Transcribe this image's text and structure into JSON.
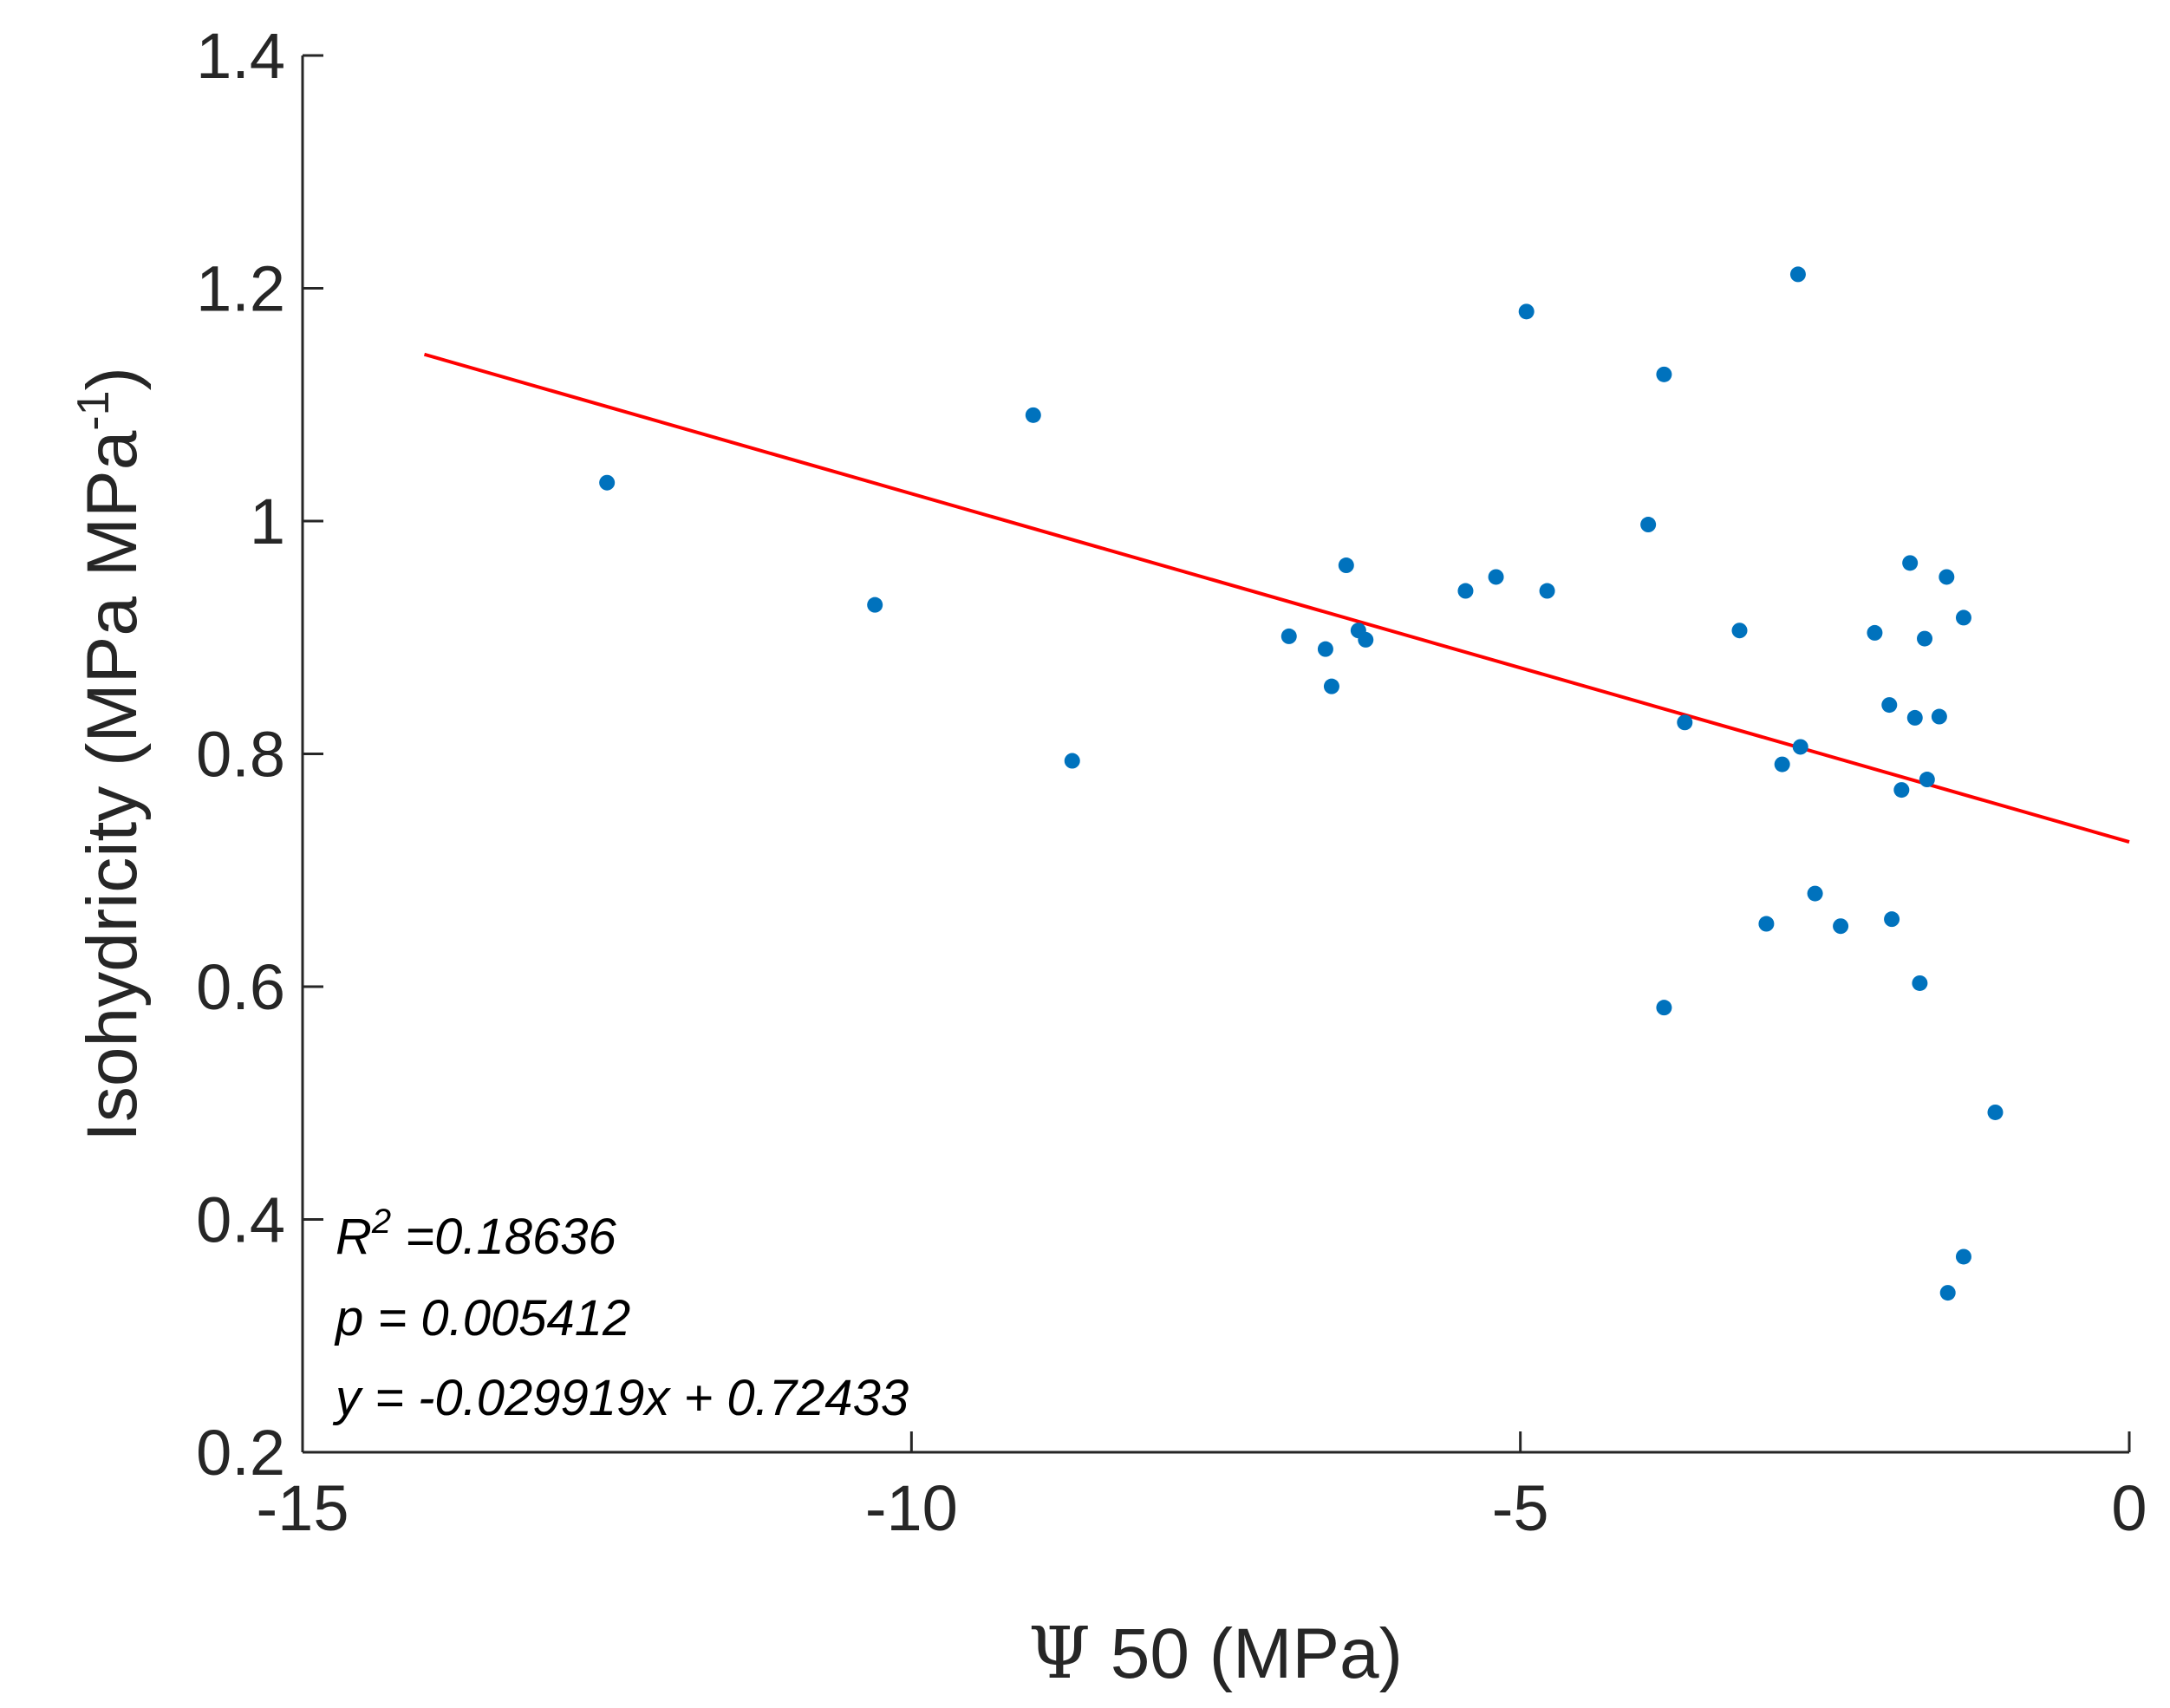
{
  "chart_data": {
    "type": "scatter",
    "xlabel_symbol": "Ψ",
    "xlabel": " 50 (MPa)",
    "ylabel": "Isohydricity (MPa MPa",
    "ylabel_sup": "-1",
    "ylabel_end": ")",
    "xlim": [
      -15,
      0
    ],
    "ylim": [
      0.2,
      1.4
    ],
    "xticks": [
      -15,
      -10,
      -5,
      0
    ],
    "xtick_labels": [
      "-15",
      "-10",
      "-5",
      "0"
    ],
    "yticks": [
      0.2,
      0.4,
      0.6,
      0.8,
      1.0,
      1.2,
      1.4
    ],
    "ytick_labels": [
      "0.2",
      "0.4",
      "0.6",
      "0.8",
      "1",
      "1.2",
      "1.4"
    ],
    "points": [
      {
        "x": -12.5,
        "y": 1.033
      },
      {
        "x": -10.3,
        "y": 0.928
      },
      {
        "x": -9.0,
        "y": 1.091
      },
      {
        "x": -8.68,
        "y": 0.794
      },
      {
        "x": -6.9,
        "y": 0.901
      },
      {
        "x": -6.6,
        "y": 0.89
      },
      {
        "x": -6.55,
        "y": 0.858
      },
      {
        "x": -6.43,
        "y": 0.962
      },
      {
        "x": -6.33,
        "y": 0.906
      },
      {
        "x": -6.27,
        "y": 0.898
      },
      {
        "x": -5.45,
        "y": 0.94
      },
      {
        "x": -5.2,
        "y": 0.952
      },
      {
        "x": -4.95,
        "y": 1.18
      },
      {
        "x": -4.78,
        "y": 0.94
      },
      {
        "x": -3.95,
        "y": 0.997
      },
      {
        "x": -3.82,
        "y": 1.126
      },
      {
        "x": -3.82,
        "y": 0.582
      },
      {
        "x": -3.65,
        "y": 0.827
      },
      {
        "x": -3.2,
        "y": 0.906
      },
      {
        "x": -2.98,
        "y": 0.654
      },
      {
        "x": -2.85,
        "y": 0.791
      },
      {
        "x": -2.72,
        "y": 1.212
      },
      {
        "x": -2.7,
        "y": 0.806
      },
      {
        "x": -2.58,
        "y": 0.68
      },
      {
        "x": -2.37,
        "y": 0.652
      },
      {
        "x": -2.09,
        "y": 0.904
      },
      {
        "x": -1.97,
        "y": 0.842
      },
      {
        "x": -1.95,
        "y": 0.658
      },
      {
        "x": -1.87,
        "y": 0.769
      },
      {
        "x": -1.8,
        "y": 0.964
      },
      {
        "x": -1.76,
        "y": 0.831
      },
      {
        "x": -1.72,
        "y": 0.603
      },
      {
        "x": -1.68,
        "y": 0.899
      },
      {
        "x": -1.66,
        "y": 0.778
      },
      {
        "x": -1.56,
        "y": 0.832
      },
      {
        "x": -1.5,
        "y": 0.952
      },
      {
        "x": -1.49,
        "y": 0.337
      },
      {
        "x": -1.36,
        "y": 0.917
      },
      {
        "x": -1.36,
        "y": 0.368
      },
      {
        "x": -1.1,
        "y": 0.492
      }
    ],
    "fit": {
      "slope": -0.029919,
      "intercept": 0.72433,
      "x_start": -14.0,
      "x_end": 0
    },
    "colors": {
      "points": "#0072BD",
      "fit_line": "#FF0000",
      "axis": "#262626"
    },
    "annotations": {
      "r2_label": "R",
      "r2_sup": "2",
      "r2_value": " =0.18636",
      "p_line": "p = 0.005412",
      "eq_line": "y = -0.029919x + 0.72433"
    }
  }
}
